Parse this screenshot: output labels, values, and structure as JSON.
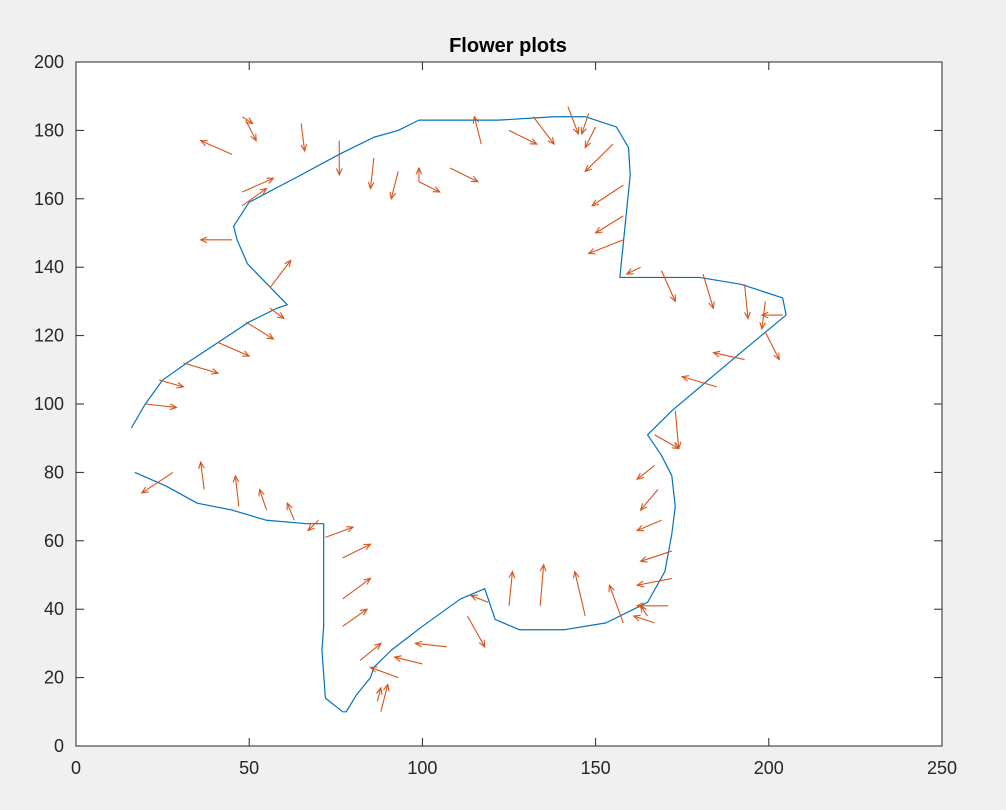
{
  "chart_data": {
    "type": "line",
    "title": "Flower plots",
    "xlabel": "",
    "ylabel": "",
    "xlim": [
      0,
      250
    ],
    "ylim": [
      0,
      200
    ],
    "xticks": [
      0,
      50,
      100,
      150,
      200,
      250
    ],
    "yticks": [
      0,
      20,
      40,
      60,
      80,
      100,
      120,
      140,
      160,
      180,
      200
    ],
    "grid": false,
    "colors": {
      "curve": "#0072BD",
      "arrows": "#D95319",
      "axes": "#262626",
      "background": "#ffffff",
      "figure": "#f0f0f0"
    },
    "series": [
      {
        "type": "line",
        "color": "#0072BD",
        "x": [
          16,
          20,
          25,
          32,
          41,
          50,
          58,
          61,
          49.5,
          46.5,
          45.5,
          50,
          65,
          76,
          86,
          93,
          99,
          108,
          122,
          138,
          147,
          156,
          159.5,
          160,
          157,
          167,
          180,
          192,
          204,
          205,
          199,
          186,
          172,
          165,
          169,
          172,
          173,
          172,
          170,
          165,
          153,
          141,
          128,
          121,
          118,
          111,
          100,
          91,
          86,
          85,
          81,
          78,
          77,
          72,
          71,
          71.5,
          71.5,
          66.5,
          55,
          45,
          35,
          26,
          17
        ],
        "y": [
          93,
          100,
          107,
          112,
          118,
          124,
          128,
          129,
          141,
          148,
          152,
          159,
          167,
          173,
          178,
          180,
          183,
          183,
          183,
          184,
          184,
          181,
          175,
          167,
          137,
          137,
          137,
          135,
          131,
          126,
          121,
          110,
          98,
          91,
          85,
          79,
          70,
          62,
          51,
          42,
          36,
          34,
          34,
          37,
          46,
          43,
          35,
          28,
          23,
          20,
          15,
          10,
          10,
          14,
          28,
          35,
          65,
          65,
          66,
          69,
          71,
          76,
          80
        ]
      }
    ],
    "quiver": {
      "color": "#D95319",
      "arrows": [
        [
          20,
          100,
          9,
          -1
        ],
        [
          24,
          107,
          7,
          -2
        ],
        [
          31,
          112,
          10,
          -3
        ],
        [
          41,
          118,
          9,
          -4
        ],
        [
          49,
          124,
          8,
          -5
        ],
        [
          56,
          128,
          4,
          -3
        ],
        [
          56,
          134,
          6,
          8
        ],
        [
          48,
          158,
          7,
          5
        ],
        [
          48,
          162,
          9,
          4
        ],
        [
          45,
          148,
          -9,
          0
        ],
        [
          45,
          173,
          -9,
          4
        ],
        [
          48,
          184,
          3,
          -2
        ],
        [
          49,
          183,
          3,
          -6
        ],
        [
          65,
          182,
          1,
          -8
        ],
        [
          76,
          177,
          0,
          -10
        ],
        [
          86,
          172,
          -1,
          -9
        ],
        [
          93,
          168,
          -2,
          -8
        ],
        [
          99,
          165,
          0,
          4
        ],
        [
          99,
          165,
          6,
          -3
        ],
        [
          108,
          169,
          8,
          -4
        ],
        [
          117,
          176,
          -2,
          8
        ],
        [
          125,
          180,
          8,
          -4
        ],
        [
          132,
          184,
          6,
          -8
        ],
        [
          142,
          187,
          3,
          -8
        ],
        [
          148,
          185,
          -2,
          -6
        ],
        [
          150,
          181,
          -3,
          -6
        ],
        [
          155,
          176,
          -8,
          -8
        ],
        [
          158,
          164,
          -9,
          -6
        ],
        [
          158,
          155,
          -8,
          -5
        ],
        [
          158,
          148,
          -10,
          -4
        ],
        [
          163,
          140,
          -4,
          -2
        ],
        [
          169,
          139,
          4,
          -9
        ],
        [
          181,
          138,
          3,
          -10
        ],
        [
          193,
          135,
          1,
          -10
        ],
        [
          199,
          130,
          -1,
          -8
        ],
        [
          204,
          126,
          -6,
          0
        ],
        [
          199,
          121,
          4,
          -8
        ],
        [
          193,
          113,
          -9,
          2
        ],
        [
          185,
          105,
          -10,
          3
        ],
        [
          173,
          98,
          1,
          -11
        ],
        [
          167,
          91,
          7,
          -4
        ],
        [
          167,
          82,
          -5,
          -4
        ],
        [
          168,
          75,
          -5,
          -6
        ],
        [
          169,
          66,
          -7,
          -3
        ],
        [
          172,
          57,
          -9,
          -3
        ],
        [
          172,
          49,
          -10,
          -2
        ],
        [
          171,
          41,
          -9,
          0
        ],
        [
          167,
          36,
          -6,
          2
        ],
        [
          165,
          38,
          -2,
          3
        ],
        [
          158,
          36,
          -4,
          11
        ],
        [
          147,
          38,
          -3,
          13
        ],
        [
          134,
          41,
          1,
          12
        ],
        [
          125,
          41,
          1,
          10
        ],
        [
          119,
          42,
          -5,
          2
        ],
        [
          113,
          38,
          5,
          -9
        ],
        [
          107,
          29,
          -9,
          1
        ],
        [
          100,
          24,
          -8,
          2
        ],
        [
          93,
          20,
          -8,
          3
        ],
        [
          88,
          10,
          2,
          8
        ],
        [
          87,
          13,
          1,
          4
        ],
        [
          82,
          25,
          6,
          5
        ],
        [
          77,
          35,
          7,
          5
        ],
        [
          77,
          43,
          8,
          6
        ],
        [
          77,
          55,
          8,
          4
        ],
        [
          72,
          61,
          8,
          3
        ],
        [
          70,
          66,
          -3,
          -3
        ],
        [
          63,
          66,
          -2,
          5
        ],
        [
          55,
          69,
          -2,
          6
        ],
        [
          47,
          70,
          -1,
          9
        ],
        [
          37,
          75,
          -1,
          8
        ],
        [
          28,
          80,
          -9,
          -6
        ]
      ]
    }
  }
}
